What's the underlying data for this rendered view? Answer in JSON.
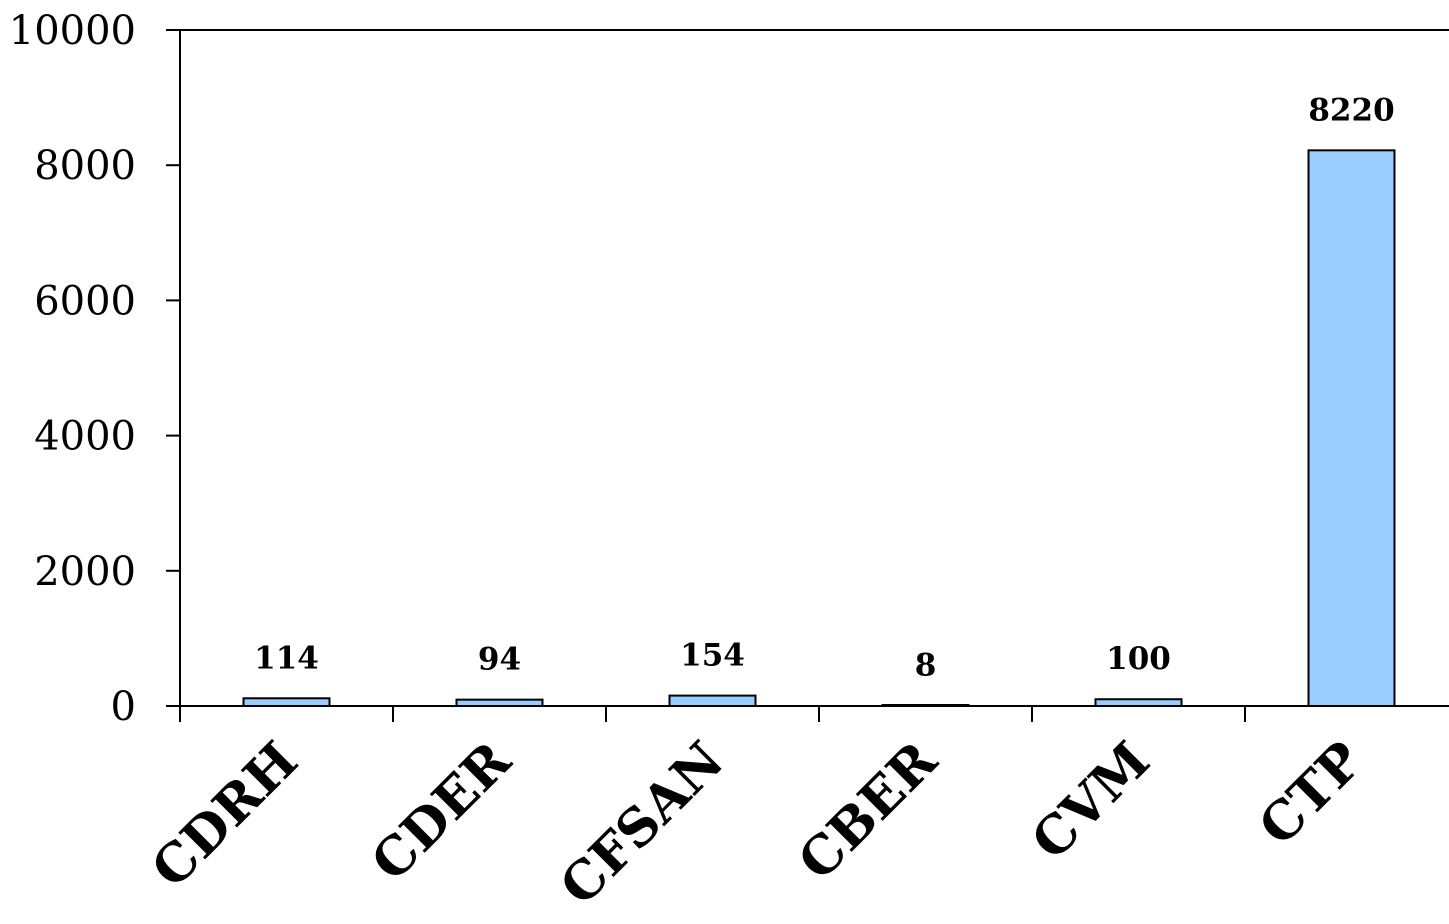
{
  "chart_data": {
    "type": "bar",
    "title": "",
    "xlabel": "",
    "ylabel": "",
    "categories": [
      "CDRH",
      "CDER",
      "CFSAN",
      "CBER",
      "CVM",
      "CTP"
    ],
    "values": [
      114,
      94,
      154,
      8,
      100,
      8220
    ],
    "data_labels": [
      "114",
      "94",
      "154",
      "8",
      "100",
      "8220"
    ],
    "ylim": [
      0,
      10000
    ],
    "yticks": [
      0,
      2000,
      4000,
      6000,
      8000,
      10000
    ],
    "ytick_labels": [
      "0",
      "2000",
      "4000",
      "6000",
      "8000",
      "10000"
    ],
    "grid": false,
    "legend": "none",
    "bar_color": "#99ccff",
    "bar_edge_color": "#000000"
  }
}
